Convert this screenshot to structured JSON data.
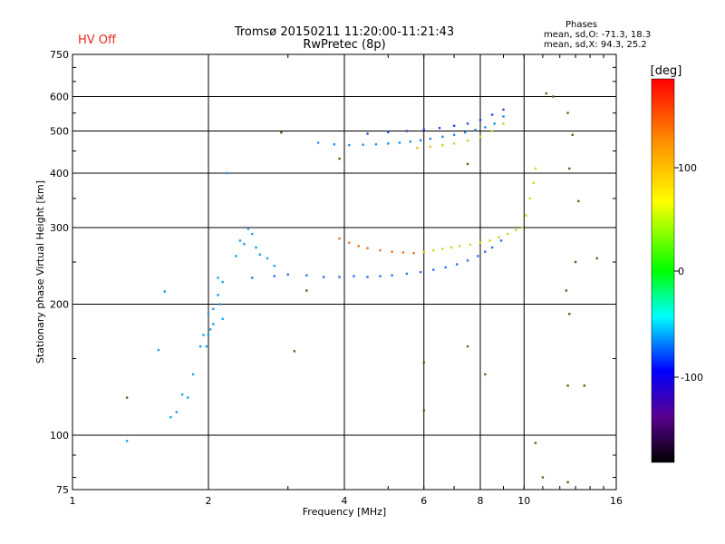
{
  "status_text": "HV Off",
  "title_line1": "Tromsø 20150211 11:20:00-11:21:43",
  "title_line2": "RwPretec (8p)",
  "phases": {
    "heading": "Phases",
    "line_o": "mean, sd,O: -71.3, 18.3",
    "line_x": "mean, sd,X:  94.3, 25.2"
  },
  "colorbar": {
    "label": "[deg]",
    "ticks": [
      "100",
      "0",
      "-100"
    ]
  },
  "chart_data": {
    "type": "scatter",
    "xlabel": "Frequency [MHz]",
    "ylabel": "Stationary phase Virtual Height [km]",
    "x_scale": "log",
    "y_scale": "log",
    "xlim": [
      1,
      16
    ],
    "ylim": [
      75,
      750
    ],
    "x_ticks": [
      "1",
      "2",
      "4",
      "6",
      "8",
      "10",
      "16"
    ],
    "y_ticks": [
      "75",
      "100",
      "200",
      "300",
      "400",
      "500",
      "600",
      "750"
    ],
    "grid": true,
    "color_scale_deg": [
      -180,
      180
    ],
    "series": [
      {
        "color": "#1aa0f0",
        "points": [
          [
            1.32,
            97
          ],
          [
            1.55,
            157
          ],
          [
            1.6,
            214
          ],
          [
            1.65,
            110
          ],
          [
            1.7,
            113
          ],
          [
            1.75,
            124
          ],
          [
            1.8,
            122
          ],
          [
            1.85,
            138
          ],
          [
            1.92,
            160
          ],
          [
            1.95,
            170
          ],
          [
            1.98,
            160
          ],
          [
            2.0,
            170
          ],
          [
            2.0,
            190
          ],
          [
            2.02,
            175
          ],
          [
            2.05,
            180
          ],
          [
            2.05,
            195
          ],
          [
            2.1,
            210
          ],
          [
            2.12,
            200
          ],
          [
            2.15,
            185
          ],
          [
            2.1,
            230
          ],
          [
            2.15,
            225
          ],
          [
            2.2,
            400
          ],
          [
            2.3,
            258
          ],
          [
            2.35,
            280
          ],
          [
            2.4,
            275
          ],
          [
            2.45,
            298
          ],
          [
            2.5,
            290
          ],
          [
            2.55,
            270
          ],
          [
            2.6,
            260
          ],
          [
            2.7,
            255
          ],
          [
            2.8,
            245
          ]
        ]
      },
      {
        "color": "#2a6ef5",
        "points": [
          [
            2.5,
            230
          ],
          [
            2.8,
            232
          ],
          [
            3.0,
            234
          ],
          [
            3.3,
            233
          ],
          [
            3.6,
            231
          ],
          [
            3.9,
            231
          ],
          [
            4.2,
            232
          ],
          [
            4.5,
            231
          ],
          [
            4.8,
            232
          ],
          [
            5.1,
            233
          ],
          [
            5.5,
            235
          ],
          [
            5.9,
            237
          ],
          [
            6.3,
            240
          ],
          [
            6.7,
            243
          ],
          [
            7.1,
            247
          ],
          [
            7.5,
            252
          ],
          [
            7.9,
            258
          ],
          [
            8.2,
            264
          ],
          [
            8.5,
            270
          ],
          [
            8.9,
            280
          ]
        ]
      },
      {
        "color": "#e87420",
        "points": [
          [
            3.9,
            283
          ],
          [
            4.1,
            277
          ],
          [
            4.3,
            272
          ],
          [
            4.5,
            269
          ],
          [
            4.8,
            266
          ],
          [
            5.1,
            264
          ],
          [
            5.4,
            263
          ],
          [
            5.7,
            262
          ],
          [
            6.0,
            263
          ]
        ]
      },
      {
        "color": "#c8d820",
        "points": [
          [
            6.0,
            264
          ],
          [
            6.3,
            266
          ],
          [
            6.6,
            268
          ],
          [
            6.9,
            270
          ],
          [
            7.2,
            272
          ],
          [
            7.6,
            274
          ],
          [
            8.0,
            277
          ],
          [
            8.4,
            280
          ],
          [
            8.8,
            285
          ],
          [
            9.2,
            290
          ],
          [
            9.6,
            296
          ],
          [
            9.9,
            300
          ],
          [
            10.1,
            320
          ],
          [
            10.3,
            350
          ],
          [
            10.5,
            380
          ],
          [
            10.6,
            410
          ]
        ]
      },
      {
        "color": "#1e8cf0",
        "points": [
          [
            3.5,
            470
          ],
          [
            3.8,
            466
          ],
          [
            4.1,
            464
          ],
          [
            4.4,
            465
          ],
          [
            4.7,
            466
          ],
          [
            5.0,
            468
          ],
          [
            5.3,
            470
          ],
          [
            5.6,
            473
          ],
          [
            5.9,
            476
          ],
          [
            6.2,
            480
          ],
          [
            6.6,
            485
          ],
          [
            7.0,
            490
          ],
          [
            7.4,
            496
          ],
          [
            7.8,
            503
          ],
          [
            8.2,
            510
          ],
          [
            8.6,
            520
          ],
          [
            9.0,
            540
          ]
        ]
      },
      {
        "color": "#2a44f0",
        "points": [
          [
            4.5,
            493
          ],
          [
            5.0,
            497
          ],
          [
            5.5,
            500
          ],
          [
            6.0,
            504
          ],
          [
            6.5,
            508
          ],
          [
            7.0,
            514
          ],
          [
            7.5,
            520
          ],
          [
            8.0,
            530
          ],
          [
            8.5,
            545
          ],
          [
            9.0,
            560
          ]
        ]
      },
      {
        "color": "#d8c830",
        "points": [
          [
            5.8,
            457
          ],
          [
            6.2,
            460
          ],
          [
            6.6,
            464
          ],
          [
            7.0,
            468
          ],
          [
            7.5,
            475
          ],
          [
            8.0,
            485
          ],
          [
            8.5,
            500
          ],
          [
            9.0,
            520
          ]
        ]
      },
      {
        "color": "#606020",
        "points": [
          [
            1.32,
            122
          ],
          [
            3.1,
            156
          ],
          [
            3.3,
            215
          ],
          [
            3.9,
            432
          ],
          [
            2.9,
            496
          ],
          [
            7.5,
            420
          ],
          [
            10.6,
            96
          ],
          [
            11.2,
            610
          ],
          [
            11.6,
            600
          ],
          [
            12.5,
            550
          ],
          [
            12.8,
            490
          ],
          [
            12.6,
            410
          ],
          [
            13.2,
            345
          ],
          [
            13.0,
            250
          ],
          [
            14.5,
            255
          ],
          [
            12.4,
            215
          ],
          [
            12.6,
            190
          ],
          [
            8.2,
            138
          ],
          [
            12.5,
            130
          ],
          [
            13.6,
            130
          ],
          [
            11.0,
            80
          ],
          [
            12.5,
            78
          ],
          [
            6.0,
            114
          ],
          [
            6.0,
            147
          ],
          [
            7.5,
            160
          ]
        ]
      }
    ]
  }
}
